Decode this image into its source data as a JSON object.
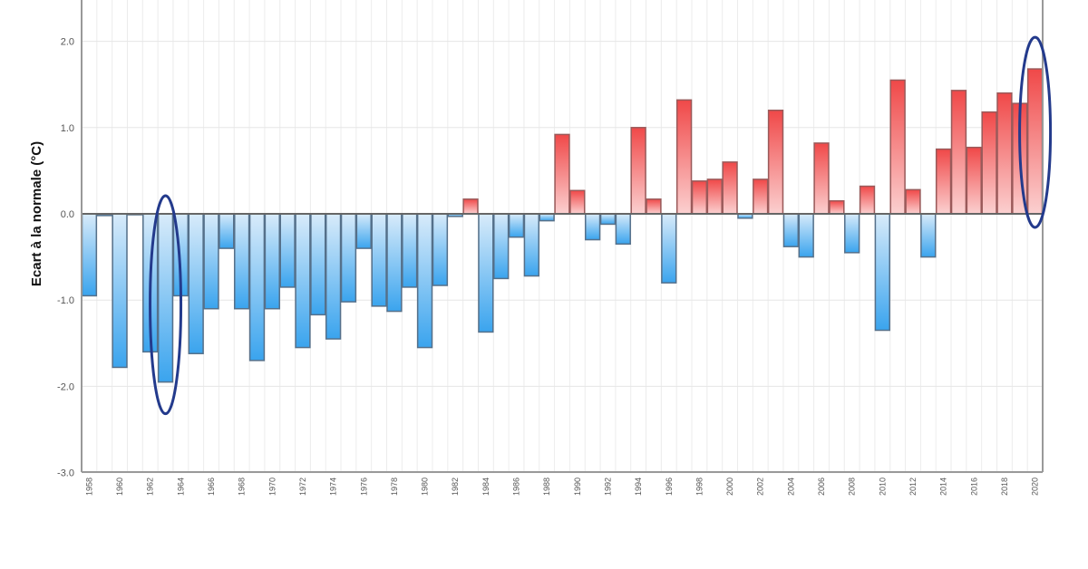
{
  "chart_data": {
    "type": "bar",
    "title": "",
    "xlabel": "",
    "ylabel": "Ecart à la normale (°C)",
    "ylim": [
      -3.0,
      2.4
    ],
    "yticks": [
      "-3.0",
      "-2.0",
      "-1.0",
      "0.0",
      "1.0",
      "2.0"
    ],
    "grid": true,
    "x": [
      1958,
      1959,
      1960,
      1961,
      1962,
      1963,
      1964,
      1965,
      1966,
      1967,
      1968,
      1969,
      1970,
      1971,
      1972,
      1973,
      1974,
      1975,
      1976,
      1977,
      1978,
      1979,
      1980,
      1981,
      1982,
      1983,
      1984,
      1985,
      1986,
      1987,
      1988,
      1989,
      1990,
      1991,
      1992,
      1993,
      1994,
      1995,
      1996,
      1997,
      1998,
      1999,
      2000,
      2001,
      2002,
      2003,
      2004,
      2005,
      2006,
      2007,
      2008,
      2009,
      2010,
      2011,
      2012,
      2013,
      2014,
      2015,
      2016,
      2017,
      2018,
      2019,
      2020
    ],
    "values": [
      -0.95,
      -0.02,
      -1.78,
      -0.01,
      -1.6,
      -1.95,
      -0.95,
      -1.62,
      -1.1,
      -0.4,
      -1.1,
      -1.7,
      -1.1,
      -0.85,
      -1.55,
      -1.17,
      -1.45,
      -1.02,
      -0.4,
      -1.07,
      -1.13,
      -0.85,
      -1.55,
      -0.83,
      -0.03,
      0.17,
      -1.37,
      -0.75,
      -0.27,
      -0.72,
      -0.08,
      0.92,
      0.27,
      -0.3,
      -0.12,
      -0.35,
      1.0,
      0.17,
      -0.8,
      1.32,
      0.38,
      0.4,
      0.6,
      -0.05,
      0.4,
      1.2,
      -0.38,
      -0.5,
      0.82,
      0.15,
      -0.45,
      0.32,
      -1.35,
      1.55,
      0.28,
      -0.5,
      0.75,
      1.43,
      0.77,
      1.18,
      1.4,
      1.28,
      1.68
    ],
    "xtick_labels": [
      "1958",
      "1960",
      "1962",
      "1964",
      "1966",
      "1968",
      "1970",
      "1972",
      "1974",
      "1976",
      "1978",
      "1980",
      "1982",
      "1984",
      "1986",
      "1988",
      "1990",
      "1992",
      "1994",
      "1996",
      "1998",
      "2000",
      "2002",
      "2004",
      "2006",
      "2008",
      "2010",
      "2012",
      "2014",
      "2016",
      "2018",
      "2020"
    ],
    "highlighted_years": [
      1963,
      2020
    ],
    "colors": {
      "positive": "#f04848",
      "negative": "#3aa4ee",
      "circle": "#233a8c"
    }
  }
}
